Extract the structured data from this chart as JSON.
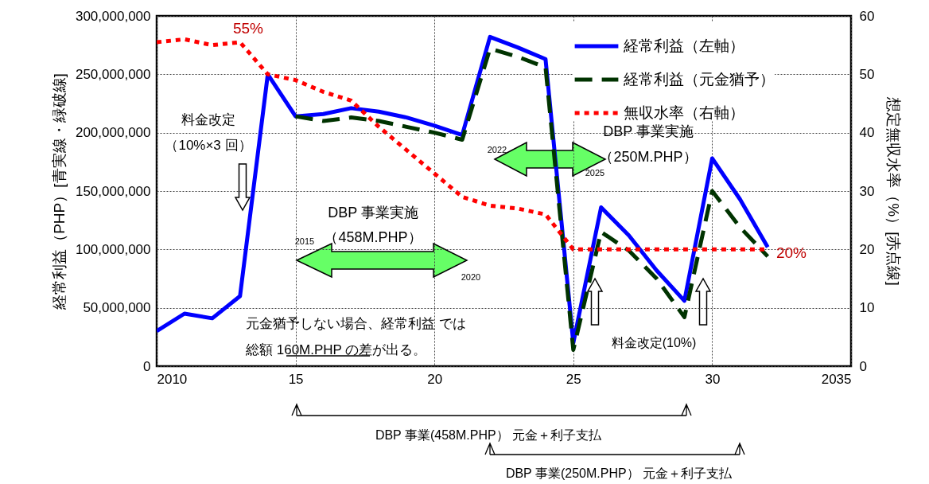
{
  "chart_data": {
    "type": "line",
    "ylabel": "経常利益（PHP）[青実線・緑破線]",
    "y2label": "想定無収水率（%）[赤点線]",
    "x": [
      2010,
      2011,
      2012,
      2013,
      2014,
      2015,
      2016,
      2017,
      2018,
      2019,
      2020,
      2021,
      2022,
      2023,
      2024,
      2025,
      2026,
      2027,
      2028,
      2029,
      2030,
      2031,
      2032
    ],
    "series": [
      {
        "name": "経常利益（左軸）",
        "color": "#0000ff",
        "line_style": "solid",
        "values": [
          30000000,
          45000000,
          41000000,
          60000000,
          250000000,
          214000000,
          216000000,
          221000000,
          218000000,
          213000000,
          206000000,
          198000000,
          282000000,
          273000000,
          263000000,
          20000000,
          136000000,
          112000000,
          82000000,
          56000000,
          178000000,
          143000000,
          102000000
        ]
      },
      {
        "name": "経常利益（元金猶予）",
        "color": "#003300",
        "line_style": "dashed",
        "values": [
          null,
          null,
          null,
          null,
          null,
          214000000,
          210000000,
          213000000,
          210000000,
          205000000,
          200000000,
          194000000,
          272000000,
          265000000,
          256000000,
          14000000,
          115000000,
          99000000,
          75000000,
          42000000,
          150000000,
          119000000,
          94000000
        ]
      },
      {
        "name": "無収水率（右軸）",
        "color": "#ff0000",
        "line_style": "dotted",
        "axis": "y2",
        "values": [
          55.5,
          56,
          55,
          55.5,
          50,
          49,
          47,
          45.5,
          41,
          37,
          33,
          29,
          27.5,
          27,
          26,
          20,
          20,
          20,
          20,
          20,
          20,
          20,
          20
        ]
      }
    ],
    "xlim": [
      2010,
      2035
    ],
    "xticks": [
      {
        "value": 2010,
        "label": "2010"
      },
      {
        "value": 2015,
        "label": "15"
      },
      {
        "value": 2020,
        "label": "20"
      },
      {
        "value": 2025,
        "label": "25"
      },
      {
        "value": 2030,
        "label": "30"
      },
      {
        "value": 2035,
        "label": "2035"
      }
    ],
    "ylim": [
      0,
      300000000
    ],
    "yticks": [
      0,
      {
        "value": 50000000,
        "label": "50,000,000"
      },
      {
        "value": 100000000,
        "label": "100,000,000"
      },
      {
        "value": 150000000,
        "label": "150,000,000"
      },
      {
        "value": 200000000,
        "label": "200,000,000"
      },
      {
        "value": 250000000,
        "label": "250,000,000"
      },
      {
        "value": 300000000,
        "label": "300,000,000"
      }
    ],
    "y2lim": [
      0,
      60
    ],
    "y2ticks": [
      0,
      10,
      20,
      30,
      40,
      50,
      60
    ],
    "grid": true,
    "legend": "top right",
    "marker": "none",
    "annotations": [
      "55%",
      "20%",
      "料金改定",
      "（10%×3 回）",
      "DBP 事業実施",
      "（458M.PHP）",
      "2015",
      "2020",
      "DBP 事業実施",
      "（250M.PHP）",
      "2022",
      "2025",
      "元金猶予しない場合、経常利益 では",
      "総額 160M.PHP の差が出る。",
      "料金改定(10%)",
      "DBP 事業(458M.PHP） 元金＋利子支払",
      "DBP 事業(250M.PHP） 元金＋利子支払"
    ]
  }
}
